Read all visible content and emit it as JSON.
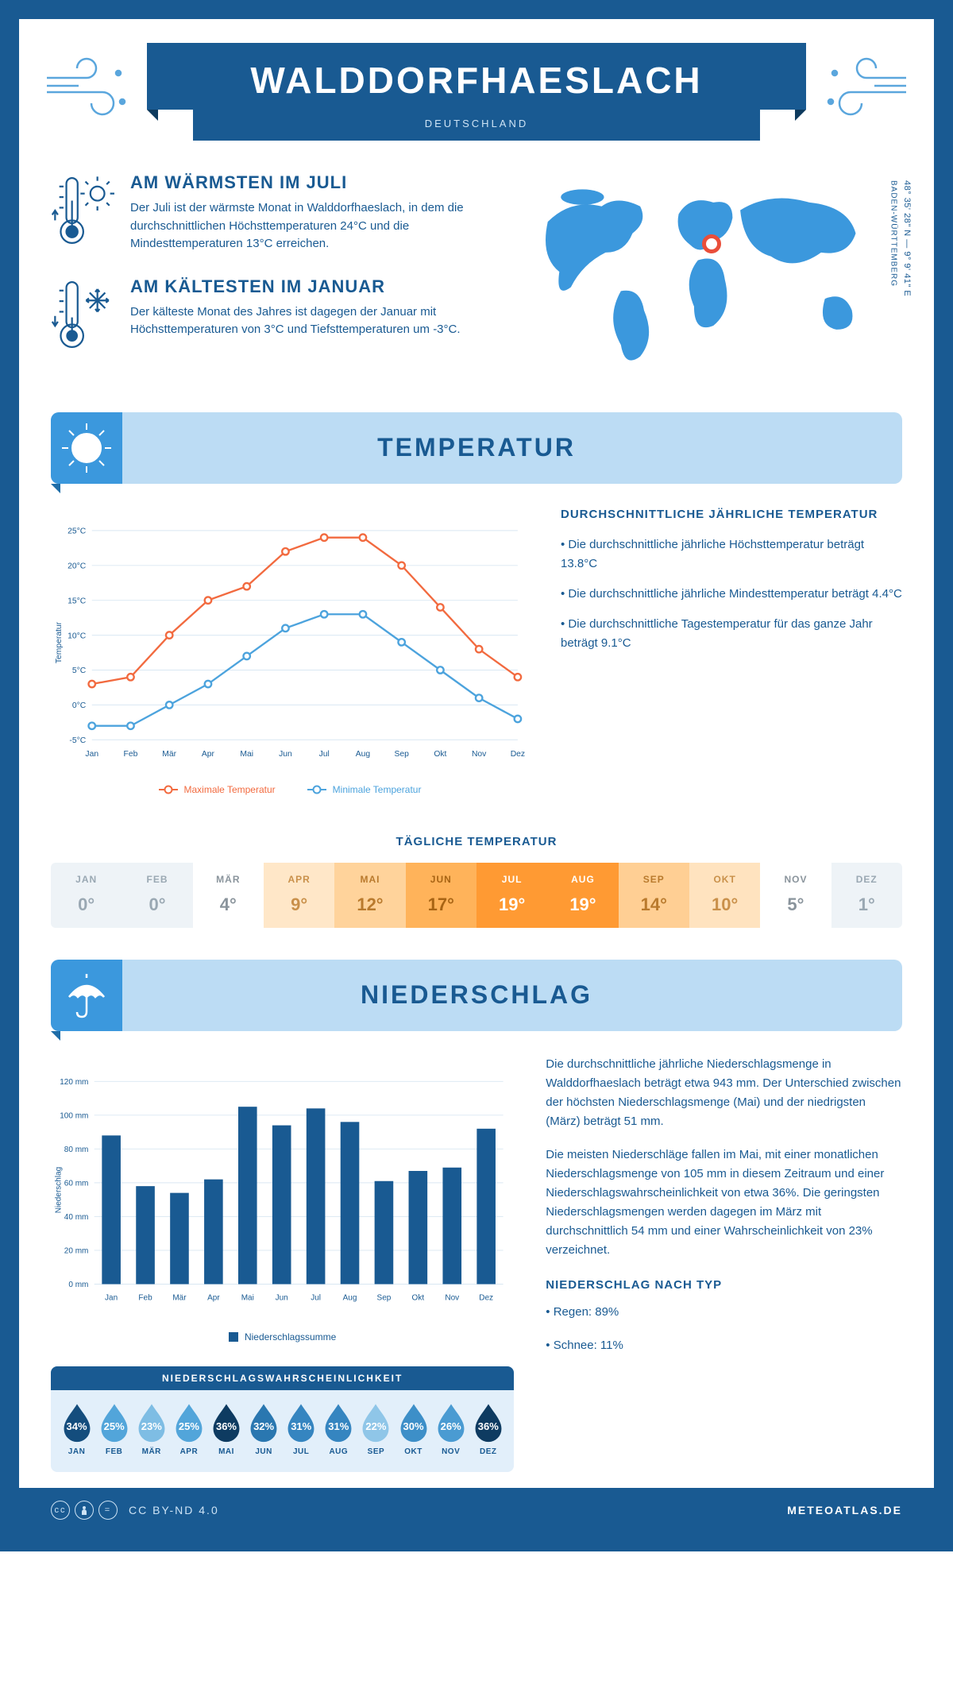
{
  "header": {
    "city": "WALDDORFHAESLACH",
    "country": "DEUTSCHLAND"
  },
  "location": {
    "coords": "48° 35' 28\" N — 9° 9' 41\" E",
    "region": "BADEN-WÜRTTEMBERG",
    "marker_color": "#e94e3a",
    "map_color": "#3b98dd"
  },
  "facts": {
    "warm": {
      "title": "AM WÄRMSTEN IM JULI",
      "text": "Der Juli ist der wärmste Monat in Walddorfhaeslach, in dem die durchschnittlichen Höchsttemperaturen 24°C und die Mindesttemperaturen 13°C erreichen."
    },
    "cold": {
      "title": "AM KÄLTESTEN IM JANUAR",
      "text": "Der kälteste Monat des Jahres ist dagegen der Januar mit Höchsttemperaturen von 3°C und Tiefsttemperaturen um -3°C."
    }
  },
  "temperature": {
    "section_title": "TEMPERATUR",
    "side": {
      "heading": "DURCHSCHNITTLICHE JÄHRLICHE TEMPERATUR",
      "b1": "• Die durchschnittliche jährliche Höchsttemperatur beträgt 13.8°C",
      "b2": "• Die durchschnittliche jährliche Mindesttemperatur beträgt 4.4°C",
      "b3": "• Die durchschnittliche Tagestemperatur für das ganze Jahr beträgt 9.1°C"
    },
    "chart": {
      "type": "line",
      "months": [
        "Jan",
        "Feb",
        "Mär",
        "Apr",
        "Mai",
        "Jun",
        "Jul",
        "Aug",
        "Sep",
        "Okt",
        "Nov",
        "Dez"
      ],
      "max": [
        3,
        4,
        10,
        15,
        17,
        22,
        24,
        24,
        20,
        14,
        8,
        4
      ],
      "min": [
        -3,
        -3,
        0,
        3,
        7,
        11,
        13,
        13,
        9,
        5,
        1,
        -2
      ],
      "max_color": "#f26a3f",
      "min_color": "#4ca3dd",
      "ylim": [
        -5,
        25
      ],
      "ytick_step": 5,
      "y_labels": [
        "-5°C",
        "0°C",
        "5°C",
        "10°C",
        "15°C",
        "20°C",
        "25°C"
      ],
      "grid_color": "#d9e7f2",
      "axis_color": "#195a92",
      "y_title": "Temperatur",
      "legend_max": "Maximale Temperatur",
      "legend_min": "Minimale Temperatur"
    },
    "daily": {
      "title": "TÄGLICHE TEMPERATUR",
      "months": [
        "JAN",
        "FEB",
        "MÄR",
        "APR",
        "MAI",
        "JUN",
        "JUL",
        "AUG",
        "SEP",
        "OKT",
        "NOV",
        "DEZ"
      ],
      "values": [
        "0°",
        "0°",
        "4°",
        "9°",
        "12°",
        "17°",
        "19°",
        "19°",
        "14°",
        "10°",
        "5°",
        "1°"
      ],
      "bg_colors": [
        "#eef3f7",
        "#eef3f7",
        "#ffffff",
        "#ffe7c8",
        "#ffd39b",
        "#ffb35a",
        "#ff9a33",
        "#ff9a33",
        "#ffcf94",
        "#ffe3bf",
        "#ffffff",
        "#eef3f7"
      ],
      "text_colors": [
        "#9aa8b3",
        "#9aa8b3",
        "#8a949c",
        "#c9904a",
        "#b97a2d",
        "#a86414",
        "#ffffff",
        "#ffffff",
        "#b97a2d",
        "#c9904a",
        "#8a949c",
        "#9aa8b3"
      ]
    }
  },
  "precip": {
    "section_title": "NIEDERSCHLAG",
    "chart": {
      "type": "bar",
      "months": [
        "Jan",
        "Feb",
        "Mär",
        "Apr",
        "Mai",
        "Jun",
        "Jul",
        "Aug",
        "Sep",
        "Okt",
        "Nov",
        "Dez"
      ],
      "values": [
        88,
        58,
        54,
        62,
        105,
        94,
        104,
        96,
        61,
        67,
        69,
        92
      ],
      "bar_color": "#195a92",
      "ylim": [
        0,
        120
      ],
      "ytick_step": 20,
      "y_labels": [
        "0 mm",
        "20 mm",
        "40 mm",
        "60 mm",
        "80 mm",
        "100 mm",
        "120 mm"
      ],
      "grid_color": "#d9e7f2",
      "y_title": "Niederschlag",
      "legend": "Niederschlagssumme"
    },
    "text": {
      "p1": "Die durchschnittliche jährliche Niederschlagsmenge in Walddorfhaeslach beträgt etwa 943 mm. Der Unterschied zwischen der höchsten Niederschlagsmenge (Mai) und der niedrigsten (März) beträgt 51 mm.",
      "p2": "Die meisten Niederschläge fallen im Mai, mit einer monatlichen Niederschlagsmenge von 105 mm in diesem Zeitraum und einer Niederschlagswahrscheinlichkeit von etwa 36%. Die geringsten Niederschlagsmengen werden dagegen im März mit durchschnittlich 54 mm und einer Wahrscheinlichkeit von 23% verzeichnet.",
      "type_heading": "NIEDERSCHLAG NACH TYP",
      "type1": "• Regen: 89%",
      "type2": "• Schnee: 11%"
    },
    "probability": {
      "title": "NIEDERSCHLAGSWAHRSCHEINLICHKEIT",
      "months": [
        "JAN",
        "FEB",
        "MÄR",
        "APR",
        "MAI",
        "JUN",
        "JUL",
        "AUG",
        "SEP",
        "OKT",
        "NOV",
        "DEZ"
      ],
      "values": [
        "34%",
        "25%",
        "23%",
        "25%",
        "36%",
        "32%",
        "31%",
        "31%",
        "22%",
        "30%",
        "26%",
        "36%"
      ],
      "colors": [
        "#144d7d",
        "#52a5da",
        "#7ebde4",
        "#52a5da",
        "#0e3b61",
        "#2a77b0",
        "#3585c0",
        "#3585c0",
        "#8fc6e8",
        "#3d8fc8",
        "#4a9bd2",
        "#0e3b61"
      ]
    }
  },
  "footer": {
    "license": "CC BY-ND 4.0",
    "site": "METEOATLAS.DE"
  },
  "palette": {
    "primary": "#195a92",
    "band": "#bcdcf4",
    "band_icon": "#3b98dd"
  }
}
